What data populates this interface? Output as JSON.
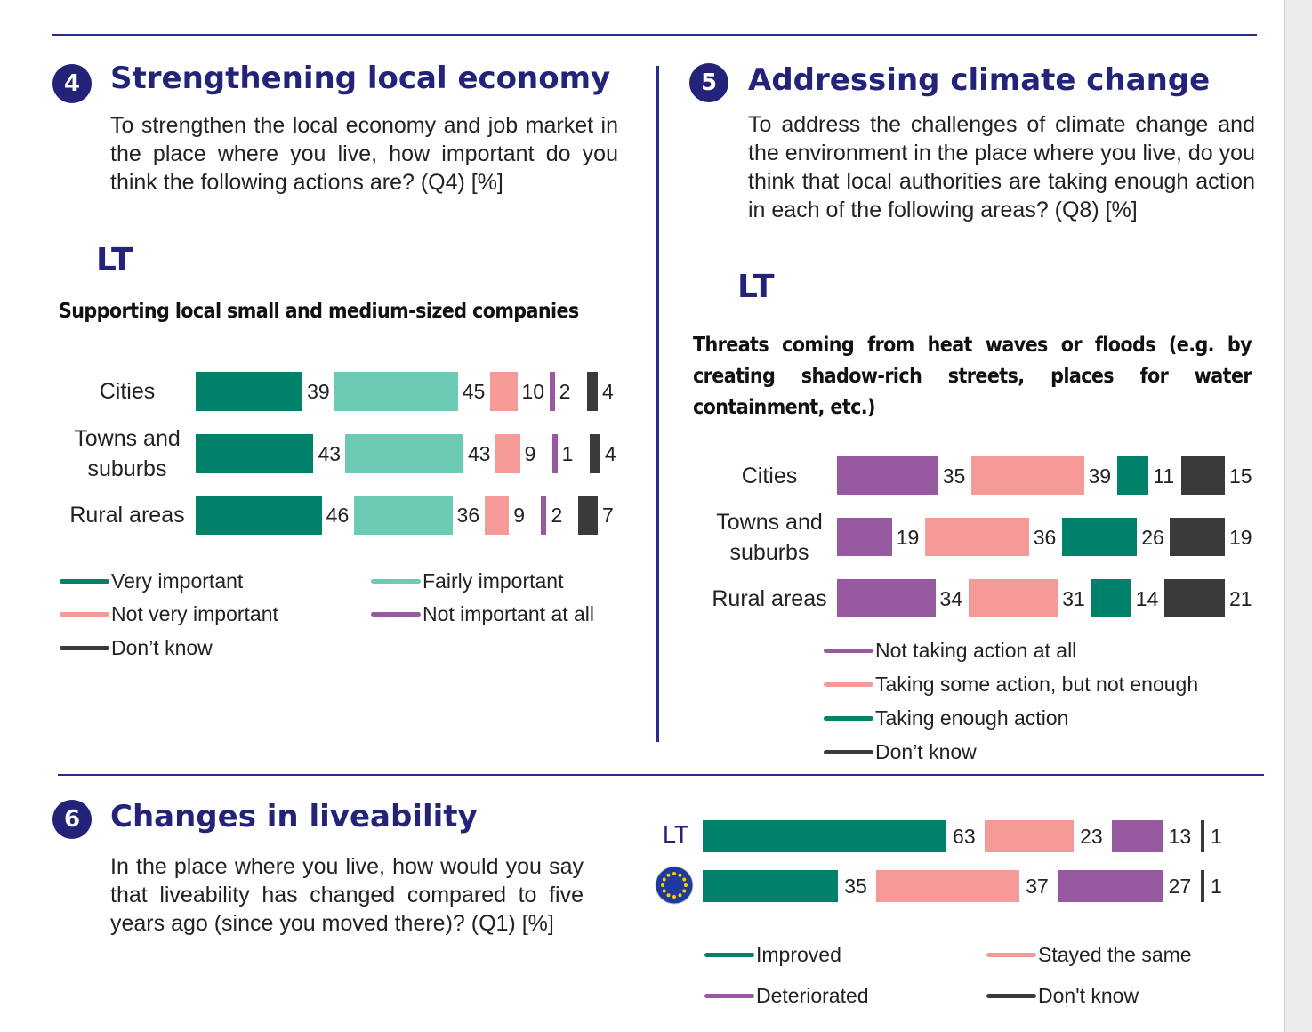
{
  "colors": {
    "dark_green": "#00826a",
    "light_teal": "#6ccab5",
    "salmon": "#f59a96",
    "purple": "#97599f",
    "dark_grey": "#3a3a3c",
    "navy": "#23237a"
  },
  "section4": {
    "number": "4",
    "title": "Strengthening local economy",
    "question": "To strengthen the local economy and job market in the place where you live, how important do you think the following actions are? (Q4) [%]",
    "country": "LT",
    "subtitle": "Supporting local small and medium-sized companies"
  },
  "section5": {
    "number": "5",
    "title": "Addressing climate change",
    "question": "To address the challenges of climate change and the environment in the place where you live, do you think that local authorities are taking enough action in each of the following areas? (Q8) [%]",
    "country": "LT",
    "subtitle": "Threats coming from heat waves or floods (e.g. by creating shadow-rich streets, places for water containment, etc.)"
  },
  "section6": {
    "number": "6",
    "title": "Changes in liveability",
    "question": "In the place where you live, how would you say that liveability has changed compared to five years ago (since you moved there)? (Q1) [%]"
  },
  "chart_data": [
    {
      "type": "bar",
      "orientation": "horizontal-stacked",
      "title": "Supporting local small and medium-sized companies",
      "categories": [
        "Cities",
        "Towns and suburbs",
        "Rural areas"
      ],
      "series": [
        {
          "name": "Very important",
          "color": "#00826a",
          "values": [
            39,
            43,
            46
          ]
        },
        {
          "name": "Fairly important",
          "color": "#6ccab5",
          "values": [
            45,
            43,
            36
          ]
        },
        {
          "name": "Not very important",
          "color": "#f59a96",
          "values": [
            10,
            9,
            9
          ]
        },
        {
          "name": "Not important at all",
          "color": "#97599f",
          "values": [
            2,
            1,
            2
          ]
        },
        {
          "name": "Don’t know",
          "color": "#3a3a3c",
          "values": [
            4,
            4,
            7
          ]
        }
      ],
      "legend": "bottom"
    },
    {
      "type": "bar",
      "orientation": "horizontal-stacked",
      "title": "Threats coming from heat waves or floods (e.g. by creating shadow-rich streets, places for water containment, etc.)",
      "categories": [
        "Cities",
        "Towns and suburbs",
        "Rural areas"
      ],
      "series": [
        {
          "name": "Not taking action at all",
          "color": "#97599f",
          "values": [
            35,
            19,
            34
          ]
        },
        {
          "name": "Taking some action, but not enough",
          "color": "#f59a96",
          "values": [
            39,
            36,
            31
          ]
        },
        {
          "name": "Taking enough action",
          "color": "#00826a",
          "values": [
            11,
            26,
            14
          ]
        },
        {
          "name": "Don’t know",
          "color": "#3a3a3c",
          "values": [
            15,
            19,
            21
          ]
        }
      ],
      "legend": "bottom"
    },
    {
      "type": "bar",
      "orientation": "horizontal-stacked",
      "title": "",
      "categories": [
        "LT",
        "EU"
      ],
      "series": [
        {
          "name": "Improved",
          "color": "#00826a",
          "values": [
            63,
            35
          ]
        },
        {
          "name": "Stayed the same",
          "color": "#f59a96",
          "values": [
            23,
            37
          ]
        },
        {
          "name": "Deteriorated",
          "color": "#97599f",
          "values": [
            13,
            27
          ]
        },
        {
          "name": "Don't know",
          "color": "#3a3a3c",
          "values": [
            1,
            1
          ]
        }
      ],
      "legend": "bottom"
    }
  ]
}
